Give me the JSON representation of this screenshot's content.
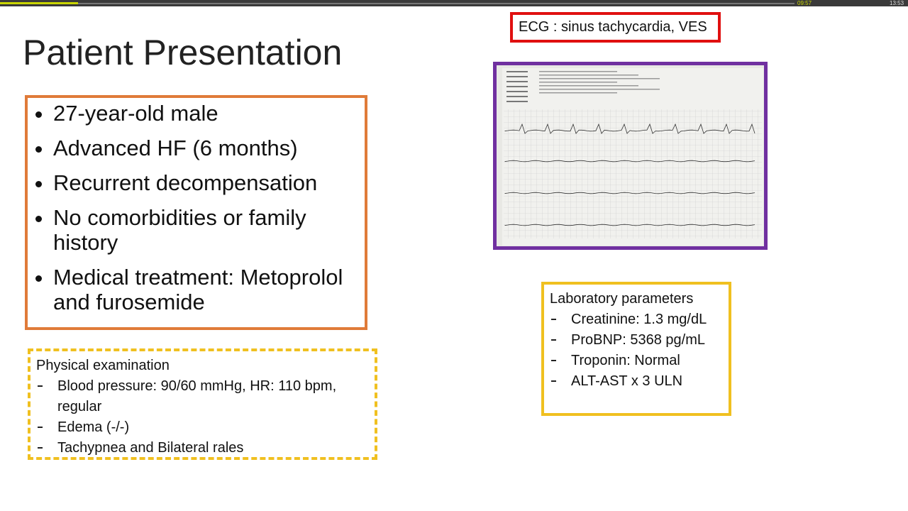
{
  "player": {
    "elapsed": "09:57",
    "total": "13:53"
  },
  "slide": {
    "title": "Patient Presentation",
    "history": [
      "27-year-old male",
      "Advanced HF (6 months)",
      "Recurrent decompensation",
      "No comorbidities or family history",
      "Medical treatment: Metoprolol and furosemide"
    ],
    "physical_exam": {
      "heading": "Physical examination",
      "items": [
        "Blood pressure: 90/60 mmHg, HR: 110 bpm, regular",
        "Edema (-/-)",
        "Tachypnea and Bilateral rales"
      ]
    },
    "ecg_caption": "ECG : sinus tachycardia, VES",
    "labs": {
      "heading": "Laboratory parameters",
      "items": [
        "Creatinine: 1.3 mg/dL",
        "ProBNP: 5368 pg/mL",
        "Troponin: Normal",
        "ALT-AST x 3 ULN"
      ]
    }
  }
}
